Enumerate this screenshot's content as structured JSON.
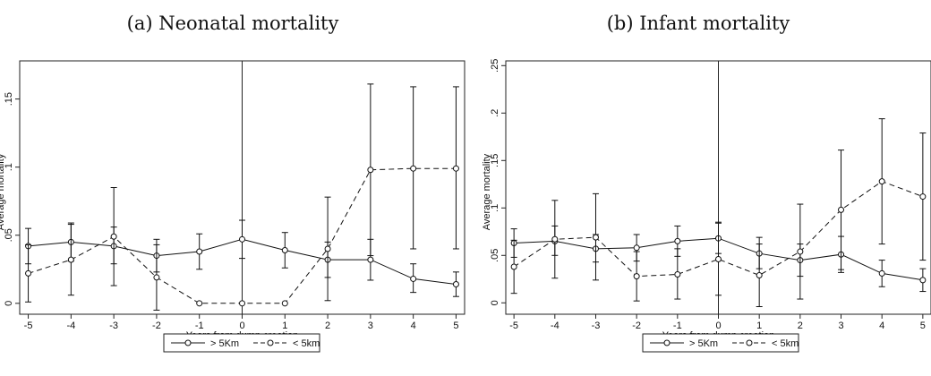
{
  "chart_data": [
    {
      "type": "line",
      "title": "(a) Neonatal mortality",
      "xlabel": "Years from dump creation",
      "ylabel": "Average mortality",
      "x": [
        -5,
        -4,
        -3,
        -2,
        -1,
        0,
        1,
        2,
        3,
        4,
        5
      ],
      "xlim": [
        -5.2,
        5.2
      ],
      "ylim": [
        -0.008,
        0.178
      ],
      "yticks": [
        0,
        0.05,
        0.1,
        0.15
      ],
      "ytick_labels": [
        "0",
        ".05",
        ".1",
        ".15"
      ],
      "vline_x": 0,
      "legend_position": "bottom",
      "series": [
        {
          "name": "> 5Km",
          "style": "solid",
          "values": [
            0.042,
            0.045,
            0.042,
            0.035,
            0.038,
            0.047,
            0.039,
            0.032,
            0.032,
            0.018,
            0.014
          ],
          "lower": [
            0.029,
            0.031,
            0.029,
            0.023,
            0.025,
            0.033,
            0.026,
            0.019,
            0.017,
            0.008,
            0.005
          ],
          "upper": [
            0.055,
            0.059,
            0.056,
            0.047,
            0.051,
            0.061,
            0.052,
            0.045,
            0.047,
            0.029,
            0.023
          ]
        },
        {
          "name": "< 5km",
          "style": "dashed",
          "values": [
            0.022,
            0.032,
            0.049,
            0.019,
            0.0,
            0.0,
            0.0,
            0.04,
            0.098,
            0.099,
            0.099
          ],
          "lower": [
            0.001,
            0.006,
            0.013,
            -0.005,
            null,
            null,
            null,
            0.002,
            0.035,
            0.04,
            0.04
          ],
          "upper": [
            0.043,
            0.058,
            0.085,
            0.043,
            null,
            null,
            null,
            0.078,
            0.161,
            0.159,
            0.159
          ]
        }
      ]
    },
    {
      "type": "line",
      "title": "(b) Infant mortality",
      "xlabel": "Years from dump creation",
      "ylabel": "Average mortality",
      "x": [
        -5,
        -4,
        -3,
        -2,
        -1,
        0,
        1,
        2,
        3,
        4,
        5
      ],
      "xlim": [
        -5.2,
        5.2
      ],
      "ylim": [
        -0.012,
        0.255
      ],
      "yticks": [
        0,
        0.05,
        0.1,
        0.15,
        0.2,
        0.25
      ],
      "ytick_labels": [
        "0",
        ".05",
        ".1",
        ".15",
        ".2",
        ".25"
      ],
      "vline_x": 0,
      "legend_position": "bottom",
      "series": [
        {
          "name": "> 5Km",
          "style": "solid",
          "values": [
            0.063,
            0.065,
            0.057,
            0.058,
            0.065,
            0.068,
            0.052,
            0.045,
            0.051,
            0.031,
            0.024
          ],
          "lower": [
            0.048,
            0.05,
            0.043,
            0.044,
            0.049,
            0.052,
            0.036,
            0.028,
            0.032,
            0.017,
            0.012
          ],
          "upper": [
            0.078,
            0.081,
            0.072,
            0.072,
            0.081,
            0.085,
            0.069,
            0.062,
            0.07,
            0.045,
            0.036
          ]
        },
        {
          "name": "< 5km",
          "style": "dashed",
          "values": [
            0.038,
            0.067,
            0.069,
            0.028,
            0.03,
            0.046,
            0.029,
            0.054,
            0.098,
            0.128,
            0.112
          ],
          "lower": [
            0.01,
            0.026,
            0.024,
            0.002,
            0.004,
            0.008,
            -0.004,
            0.004,
            0.035,
            0.062,
            0.045
          ],
          "upper": [
            0.066,
            0.108,
            0.115,
            0.054,
            0.057,
            0.084,
            0.062,
            0.104,
            0.161,
            0.194,
            0.179
          ]
        }
      ]
    }
  ]
}
